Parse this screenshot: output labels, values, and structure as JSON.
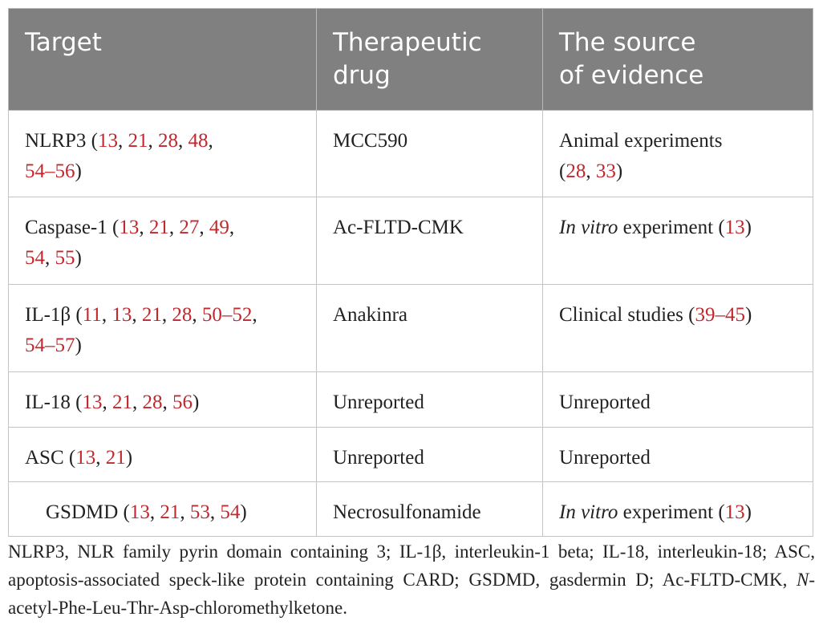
{
  "table": {
    "headers": [
      {
        "line1": "Target",
        "line2": ""
      },
      {
        "line1": "Therapeutic",
        "line2": "drug"
      },
      {
        "line1": "The source",
        "line2": "of evidence"
      }
    ],
    "rows": [
      {
        "target": "NLRP3",
        "target_refs": [
          "13",
          "21",
          "28",
          "48",
          "54–56"
        ],
        "drug": "MCC590",
        "evidence": "Animal experiments",
        "evidence_refs": [
          "28",
          "33"
        ]
      },
      {
        "target": "Caspase-1",
        "target_refs": [
          "13",
          "21",
          "27",
          "49",
          "54",
          "55"
        ],
        "drug": "Ac-FLTD-CMK",
        "evidence_italic": "In vitro",
        "evidence": "experiment",
        "evidence_refs": [
          "13"
        ]
      },
      {
        "target": "IL-1β",
        "target_refs": [
          "11",
          "13",
          "21",
          "28",
          "50–52",
          "54–57"
        ],
        "drug": "Anakinra",
        "evidence": "Clinical studies",
        "evidence_refs": [
          "39–45"
        ]
      },
      {
        "target": "IL-18",
        "target_refs": [
          "13",
          "21",
          "28",
          "56"
        ],
        "drug": "Unreported",
        "evidence": "Unreported"
      },
      {
        "target": "ASC",
        "target_refs": [
          "13",
          "21"
        ],
        "drug": "Unreported",
        "evidence": "Unreported"
      },
      {
        "target": "GSDMD",
        "target_refs": [
          "13",
          "21",
          "53",
          "54"
        ],
        "drug": "Necrosulfonamide",
        "evidence_italic": "In vitro",
        "evidence": "experiment",
        "evidence_refs": [
          "13"
        ]
      }
    ]
  },
  "footnote": {
    "text1": "NLRP3, NLR family pyrin domain containing 3; IL-1β, interleukin-1 beta; IL-18, interleukin-18; ASC, apoptosis-associated speck-like protein containing CARD; GSDMD, gasdermin D; Ac-FLTD-CMK, ",
    "italic": "N",
    "text2": "-acetyl-Phe-Leu-Thr-Asp-chloromethylketone."
  },
  "colors": {
    "header_bg": "#808080",
    "header_text": "#ffffff",
    "reference": "#c0282d",
    "border": "#c4c4c4"
  }
}
